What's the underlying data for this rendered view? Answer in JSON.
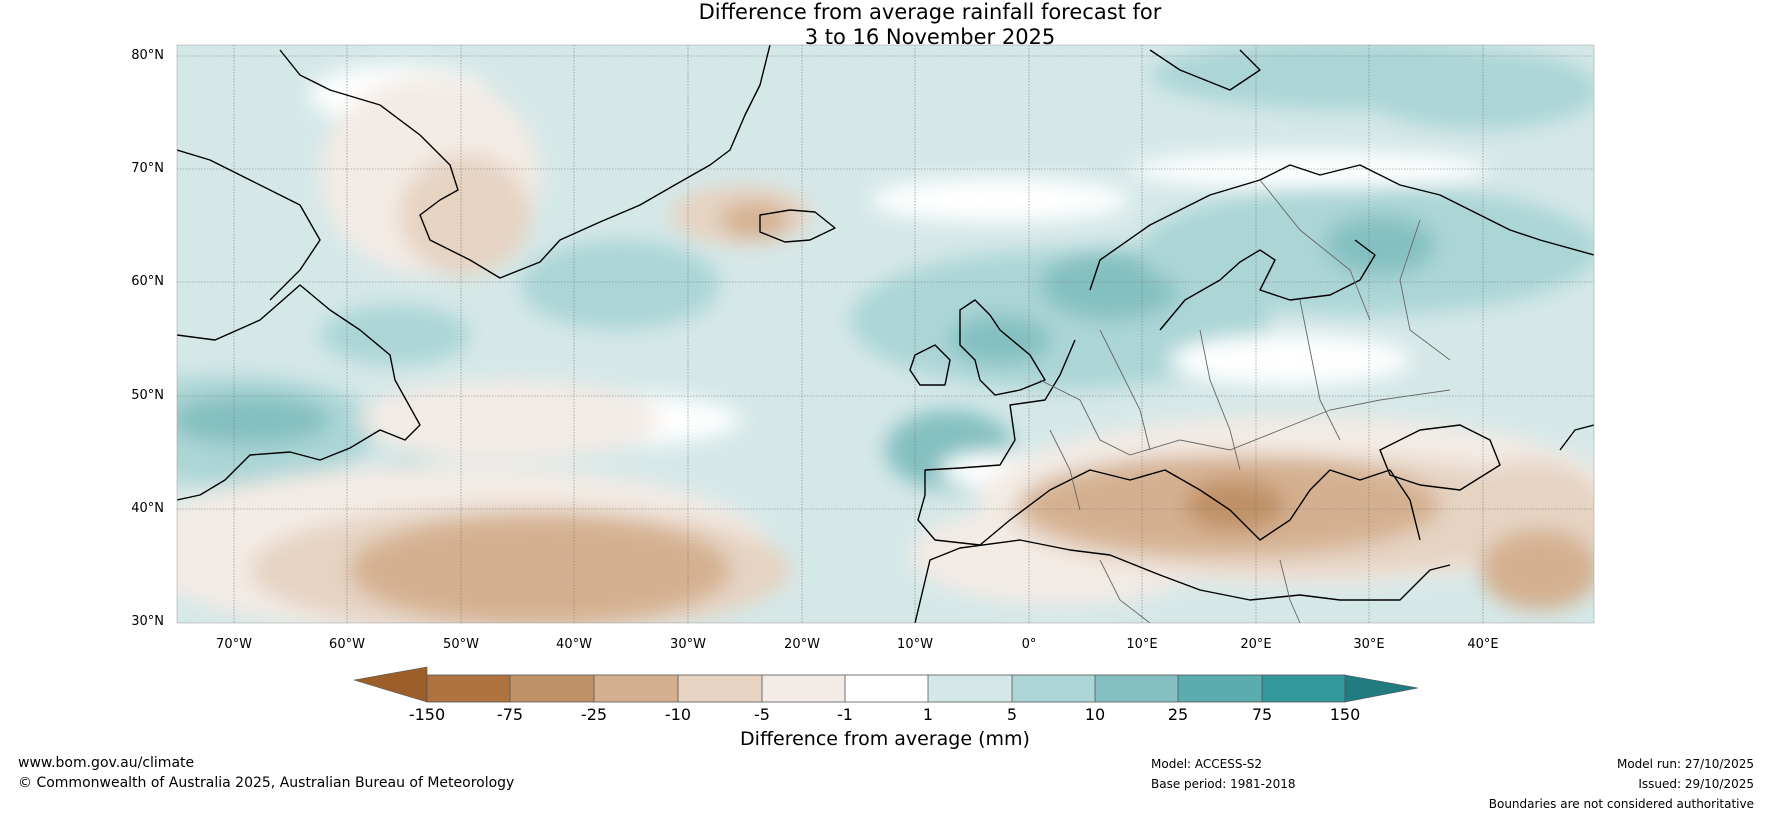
{
  "title": {
    "line1": "Difference from average rainfall forecast for",
    "line2": "3 to 16 November 2025"
  },
  "map": {
    "lat_labels": [
      "80°N",
      "70°N",
      "60°N",
      "50°N",
      "40°N",
      "30°N"
    ],
    "lon_labels": [
      "70°W",
      "60°W",
      "50°W",
      "40°W",
      "30°W",
      "20°W",
      "10°W",
      "0°",
      "10°E",
      "20°E",
      "30°E",
      "40°E"
    ],
    "extent": {
      "lon_min": -75,
      "lon_max": 50,
      "lat_min": 30,
      "lat_max": 81
    }
  },
  "colorbar": {
    "title": "Difference from average (mm)",
    "tick_labels": [
      "-150",
      "-75",
      "-25",
      "-10",
      "-5",
      "-1",
      "1",
      "5",
      "10",
      "25",
      "75",
      "150"
    ],
    "colors": [
      "#9c5f2a",
      "#ae733e",
      "#c09166",
      "#d4b090",
      "#e6d3c2",
      "#f3ebe5",
      "#ffffff",
      "#d5e8e8",
      "#acd5d6",
      "#84c0c1",
      "#5aacae",
      "#34979a",
      "#227b7e"
    ]
  },
  "footer": {
    "website": "www.bom.gov.au/climate",
    "copyright": "© Commonwealth of Australia 2025, Australian Bureau of Meteorology",
    "model": "Model: ACCESS-S2",
    "base_period": "Base period: 1981-2018",
    "model_run": "Model run: 27/10/2025",
    "issued": "Issued: 29/10/2025",
    "disclaimer": "Boundaries are not considered authoritative"
  }
}
